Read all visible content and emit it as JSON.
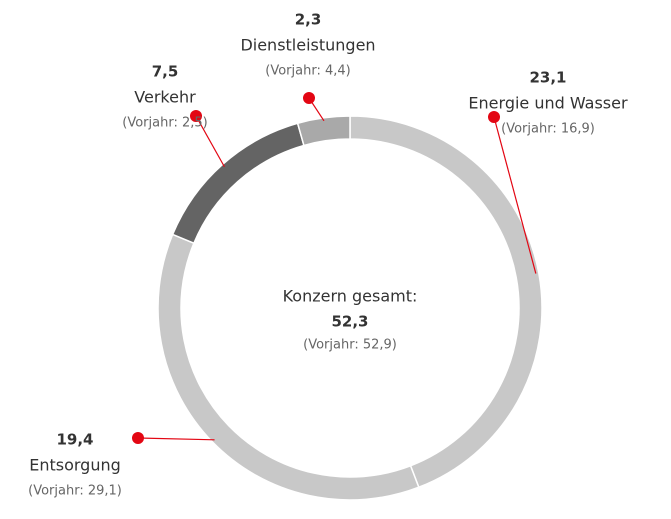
{
  "chart_data": {
    "type": "donut",
    "categories": [
      "Energie und Wasser",
      "Entsorgung",
      "Verkehr",
      "Dienstleistungen"
    ],
    "values": [
      23.1,
      19.4,
      7.5,
      2.3
    ],
    "value_labels": [
      "23,1",
      "19,4",
      "7,5",
      "2,3"
    ],
    "previous_labels": [
      "(Vorjahr: 16,9)",
      "(Vorjahr: 29,1)",
      "(Vorjahr: 2,5)",
      "(Vorjahr: 4,4)"
    ],
    "colors": [
      "#c8c8c8",
      "#c8c8c8",
      "#646464",
      "#a9a9a9"
    ],
    "marker_color": "#e30613",
    "center": {
      "label": "Konzern gesamt:",
      "total": {
        "value": 52.3,
        "label": "52,3"
      },
      "previous": "(Vorjahr: 52,9)"
    }
  }
}
